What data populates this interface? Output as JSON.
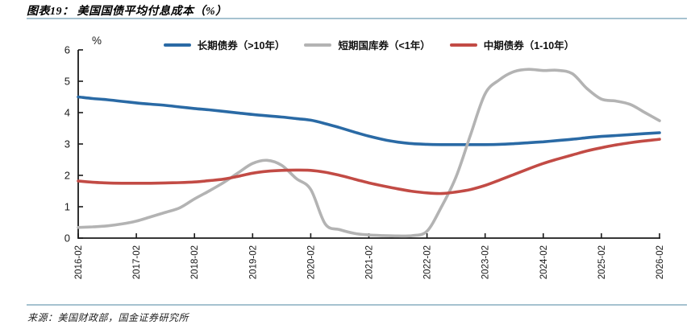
{
  "header": {
    "title": "图表19： 美国国债平均付息成本（%）"
  },
  "footer": {
    "source": "来源：美国财政部，国金证券研究所"
  },
  "colors": {
    "accent_rule": "#a6c2d0",
    "axis": "#1a1a1a",
    "series_long": "#2a6aa5",
    "series_short": "#b3b3b3",
    "series_mid": "#c24b45"
  },
  "chart_data": {
    "type": "line",
    "title": "美国国债平均付息成本",
    "ylabel": "%",
    "xlabel": "",
    "ylim": [
      0,
      6
    ],
    "y_ticks": [
      "0",
      "1",
      "2",
      "3",
      "4",
      "5",
      "6"
    ],
    "x_tick_labels": [
      "2016-02",
      "2017-02",
      "2018-02",
      "2019-02",
      "2020-02",
      "2021-02",
      "2022-02",
      "2023-02",
      "2024-02",
      "2025-02",
      "2026-02"
    ],
    "x_start": "2016-02",
    "x_end": "2026-02",
    "x_step_months": 3,
    "grid": false,
    "legend_position": "top",
    "series": [
      {
        "name": "长期债券（>10年）",
        "color": "#2a6aa5",
        "values": [
          4.5,
          4.45,
          4.41,
          4.36,
          4.31,
          4.27,
          4.23,
          4.18,
          4.13,
          4.09,
          4.04,
          3.99,
          3.94,
          3.9,
          3.86,
          3.81,
          3.76,
          3.65,
          3.52,
          3.38,
          3.25,
          3.14,
          3.06,
          3.01,
          2.99,
          2.98,
          2.98,
          2.98,
          2.98,
          2.99,
          3.01,
          3.04,
          3.07,
          3.11,
          3.15,
          3.2,
          3.24,
          3.27,
          3.3,
          3.33,
          3.36
        ]
      },
      {
        "name": "短期国库券（<1年）",
        "color": "#b3b3b3",
        "values": [
          0.34,
          0.36,
          0.39,
          0.45,
          0.54,
          0.68,
          0.82,
          0.97,
          1.25,
          1.5,
          1.77,
          2.08,
          2.38,
          2.48,
          2.32,
          1.9,
          1.55,
          0.45,
          0.27,
          0.15,
          0.1,
          0.08,
          0.07,
          0.08,
          0.22,
          1.0,
          1.95,
          3.3,
          4.6,
          5.05,
          5.31,
          5.38,
          5.34,
          5.35,
          5.24,
          4.77,
          4.43,
          4.37,
          4.26,
          4.0,
          3.74
        ]
      },
      {
        "name": "中期债券（1-10年）",
        "color": "#c24b45",
        "values": [
          1.82,
          1.78,
          1.76,
          1.75,
          1.75,
          1.75,
          1.76,
          1.77,
          1.79,
          1.83,
          1.88,
          1.97,
          2.07,
          2.13,
          2.16,
          2.17,
          2.16,
          2.1,
          2.0,
          1.88,
          1.76,
          1.66,
          1.57,
          1.49,
          1.44,
          1.42,
          1.47,
          1.55,
          1.68,
          1.85,
          2.03,
          2.21,
          2.38,
          2.52,
          2.65,
          2.78,
          2.88,
          2.97,
          3.04,
          3.1,
          3.15
        ]
      }
    ]
  }
}
